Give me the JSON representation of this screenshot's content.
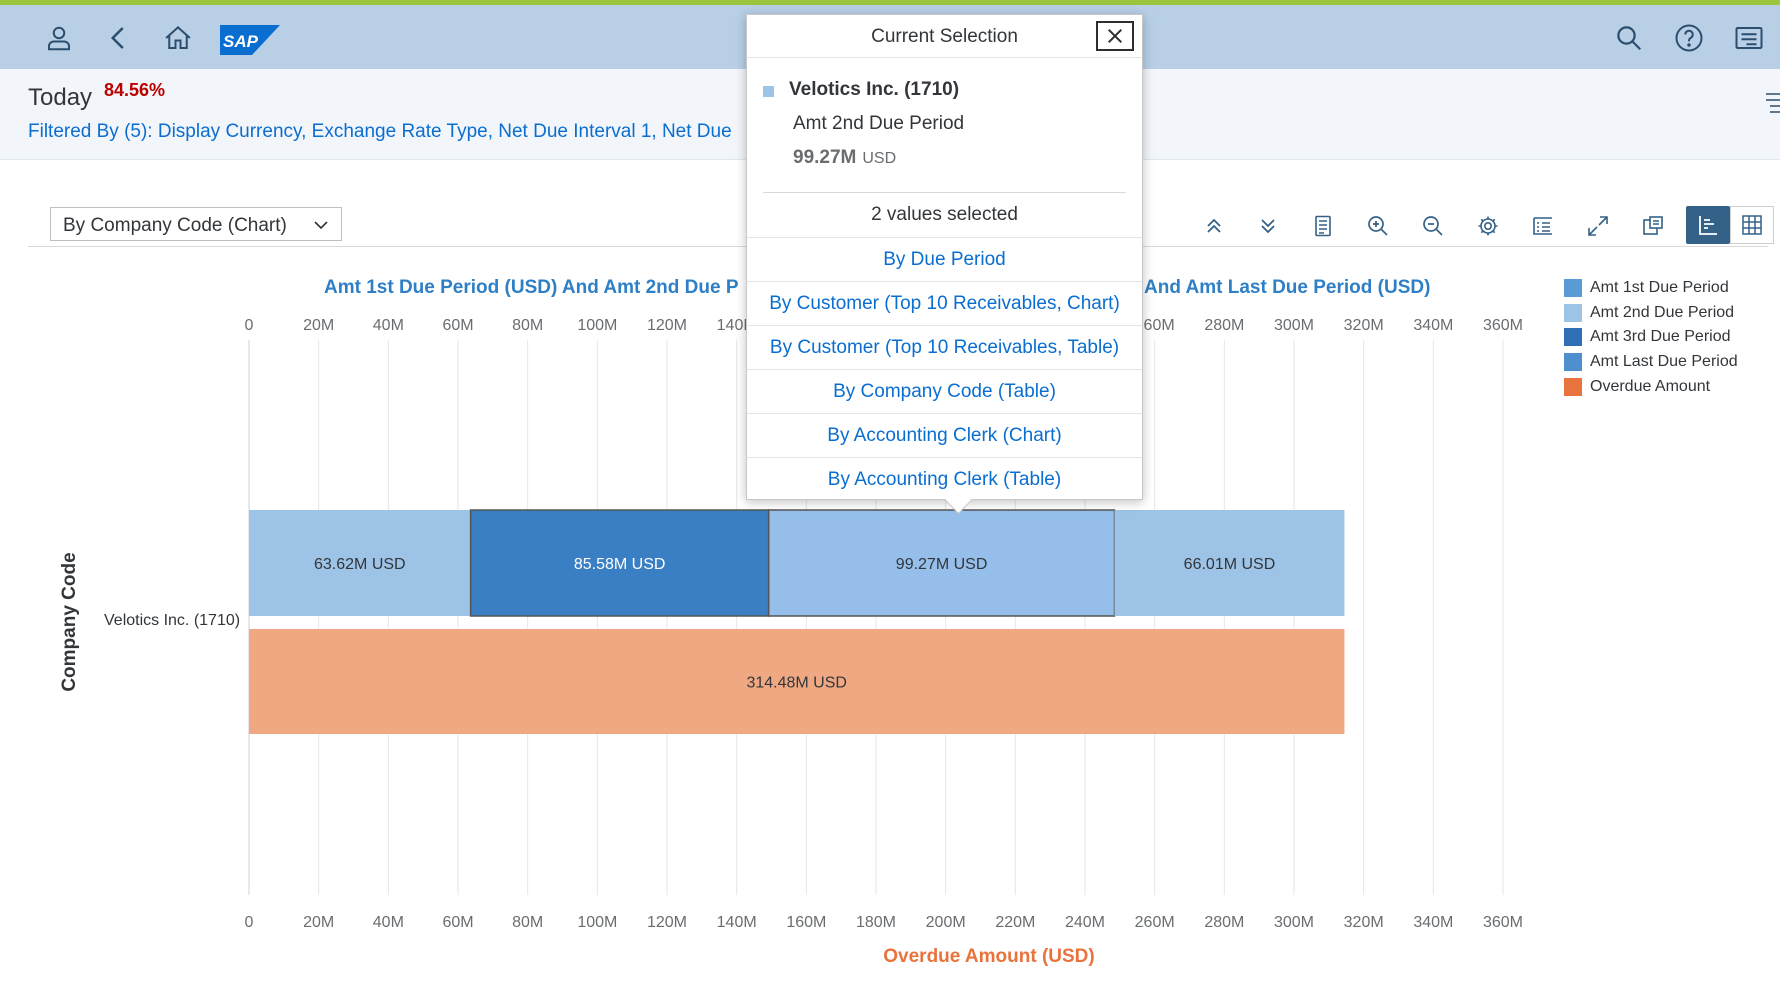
{
  "shell": {
    "logo_text": "SAP",
    "icons": [
      "user-icon",
      "back-icon",
      "home-icon",
      "search-icon",
      "help-icon",
      "notifications-icon"
    ]
  },
  "header": {
    "title": "Today",
    "percentage": "84.56%",
    "filter_text": "Filtered By (5): Display Currency, Exchange Rate Type, Net Due Interval 1, Net Due"
  },
  "toolbar": {
    "view_select": "By Company Code (Chart)",
    "icons": [
      "expand-all-icon",
      "collapse-all-icon",
      "details-icon",
      "zoom-in-icon",
      "zoom-out-icon",
      "settings-icon",
      "legend-icon",
      "fullscreen-icon",
      "export-icon",
      "chart-view-icon",
      "table-view-icon"
    ]
  },
  "popover": {
    "title": "Current Selection",
    "company": "Velotics Inc. (1710)",
    "measure": "Amt 2nd Due Period",
    "value": "99.27M",
    "unit": "USD",
    "count_text": "2 values selected",
    "navigation": [
      "By Due Period",
      "By Customer (Top 10 Receivables, Chart)",
      "By Customer (Top 10 Receivables, Table)",
      "By Company Code (Table)",
      "By Accounting Clerk (Chart)",
      "By Accounting Clerk (Table)"
    ]
  },
  "chart_data": {
    "type": "bar",
    "orientation": "horizontal",
    "title_left_visible": "Amt 1st Due Period (USD) And Amt 2nd Due P",
    "title_right_visible": "And Amt Last Due Period (USD)",
    "ylabel": "Company Code",
    "xlabel": "Overdue Amount (USD)",
    "categories": [
      "Velotics Inc. (1710)"
    ],
    "xlim": [
      0,
      360
    ],
    "x_unit": "M",
    "x_ticks": [
      "0",
      "20M",
      "40M",
      "60M",
      "80M",
      "100M",
      "120M",
      "140M",
      "160M",
      "180M",
      "200M",
      "220M",
      "240M",
      "260M",
      "280M",
      "300M",
      "320M",
      "340M",
      "360M"
    ],
    "grid": true,
    "legend_position": "right",
    "stacked_series": [
      {
        "name": "Amt 1st Due Period",
        "value": 63.62,
        "label": "63.62M USD",
        "color": "#9dc3e6",
        "selected": false
      },
      {
        "name": "Amt 3rd Due Period",
        "value": 85.58,
        "label": "85.58M USD",
        "color": "#3a7ec3",
        "selected": true
      },
      {
        "name": "Amt 2nd Due Period",
        "value": 99.27,
        "label": "99.27M USD",
        "color": "#95bfea",
        "selected": true
      },
      {
        "name": "Amt Last Due Period",
        "value": 66.01,
        "label": "66.01M USD",
        "color": "#9dc3e6",
        "selected": false
      }
    ],
    "overdue_series": {
      "name": "Overdue Amount",
      "value": 314.48,
      "label": "314.48M USD",
      "color": "#f0a883"
    },
    "legend": [
      {
        "name": "Amt 1st Due Period",
        "color": "#5b9bd5"
      },
      {
        "name": "Amt 2nd Due Period",
        "color": "#9dc3e6"
      },
      {
        "name": "Amt 3rd Due Period",
        "color": "#2f6fb5"
      },
      {
        "name": "Amt Last Due Period",
        "color": "#4f8fd0"
      },
      {
        "name": "Overdue Amount",
        "color": "#e8733c"
      }
    ]
  }
}
